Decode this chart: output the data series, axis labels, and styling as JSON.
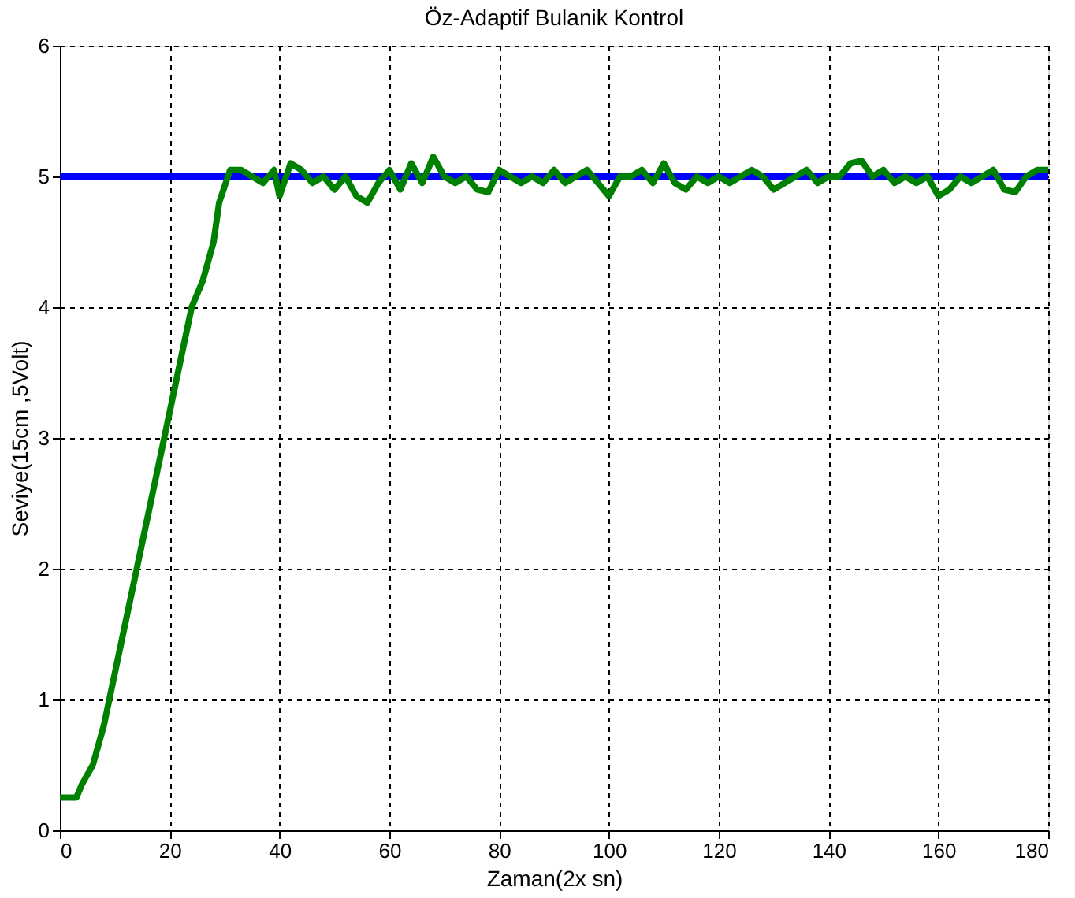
{
  "chart_data": {
    "type": "line",
    "title": "Öz-Adaptif Bulanik Kontrol",
    "xlabel": "Zaman(2x sn)",
    "ylabel": "Seviye(15cm ,5Volt)",
    "xlim": [
      0,
      180
    ],
    "ylim": [
      0,
      6
    ],
    "xticks": [
      0,
      20,
      40,
      60,
      80,
      100,
      120,
      140,
      160,
      180
    ],
    "yticks": [
      0,
      1,
      2,
      3,
      4,
      5,
      6
    ],
    "grid": true,
    "marker": "none",
    "line_style": "solid",
    "series": [
      {
        "color": "#0000ff",
        "x": [
          0,
          180
        ],
        "values": [
          5,
          5
        ]
      },
      {
        "color": "#008000",
        "x": [
          0,
          3,
          4,
          6,
          8,
          10,
          12,
          14,
          16,
          18,
          20,
          22,
          24,
          26,
          28,
          29,
          31,
          33,
          35,
          37,
          39,
          40,
          42,
          44,
          46,
          48,
          50,
          52,
          54,
          56,
          58,
          60,
          62,
          64,
          66,
          68,
          70,
          72,
          74,
          76,
          78,
          80,
          82,
          84,
          86,
          88,
          90,
          92,
          94,
          96,
          98,
          100,
          102,
          104,
          106,
          108,
          110,
          112,
          114,
          116,
          118,
          120,
          122,
          124,
          126,
          128,
          130,
          132,
          134,
          136,
          138,
          140,
          142,
          144,
          146,
          148,
          150,
          152,
          154,
          156,
          158,
          160,
          162,
          164,
          166,
          168,
          170,
          172,
          174,
          176,
          178,
          180
        ],
        "values": [
          0.25,
          0.25,
          0.35,
          0.5,
          0.8,
          1.2,
          1.6,
          2.0,
          2.4,
          2.8,
          3.2,
          3.6,
          4.0,
          4.2,
          4.5,
          4.8,
          5.05,
          5.05,
          5.0,
          4.95,
          5.05,
          4.85,
          5.1,
          5.05,
          4.95,
          5.0,
          4.9,
          5.0,
          4.85,
          4.8,
          4.95,
          5.05,
          4.9,
          5.1,
          4.95,
          5.15,
          5.0,
          4.95,
          5.0,
          4.9,
          4.88,
          5.05,
          5.0,
          4.95,
          5.0,
          4.95,
          5.05,
          4.95,
          5.0,
          5.05,
          4.95,
          4.85,
          5.0,
          5.0,
          5.05,
          4.95,
          5.1,
          4.95,
          4.9,
          5.0,
          4.95,
          5.0,
          4.95,
          5.0,
          5.05,
          5.0,
          4.9,
          4.95,
          5.0,
          5.05,
          4.95,
          5.0,
          5.0,
          5.1,
          5.12,
          5.0,
          5.05,
          4.95,
          5.0,
          4.95,
          5.0,
          4.85,
          4.9,
          5.0,
          4.95,
          5.0,
          5.05,
          4.9,
          4.88,
          5.0,
          5.05,
          5.05
        ]
      }
    ]
  }
}
